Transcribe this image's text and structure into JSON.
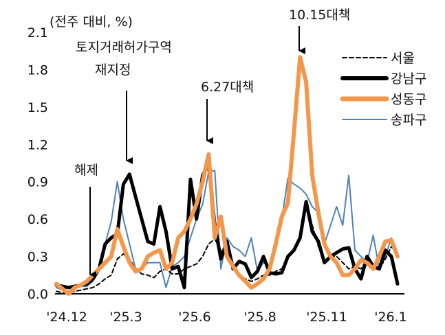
{
  "chart_data": {
    "type": "line",
    "unit_label": "(전주 대비, %)",
    "ylim": [
      0,
      2.1
    ],
    "yticks": [
      "0.0",
      "0.3",
      "0.6",
      "0.9",
      "1.2",
      "1.5",
      "1.8",
      "2.1"
    ],
    "xtick_labels": [
      "'24.12",
      "'25.3",
      "'25.6",
      "'25.8",
      "'25.11",
      "'26.1"
    ],
    "grid": false,
    "legend_position": "top-right",
    "series": [
      {
        "name": "서울",
        "color": "#000000",
        "style": "dashed",
        "values": [
          0.02,
          0.01,
          0.01,
          0.02,
          0.03,
          0.04,
          0.05,
          0.08,
          0.12,
          0.15,
          0.28,
          0.32,
          0.28,
          0.2,
          0.16,
          0.15,
          0.13,
          0.18,
          0.2,
          0.16,
          0.16,
          0.2,
          0.22,
          0.24,
          0.3,
          0.4,
          0.44,
          0.35,
          0.3,
          0.22,
          0.15,
          0.12,
          0.1,
          0.12,
          0.15,
          0.15,
          0.18,
          0.2,
          0.3,
          0.35,
          0.45,
          0.7,
          0.55,
          0.38,
          0.25,
          0.3,
          0.3,
          0.25,
          0.2,
          0.22,
          0.2,
          0.28,
          0.22,
          0.2,
          0.28,
          0.38,
          0.32
        ]
      },
      {
        "name": "강남구",
        "color": "#000000",
        "style": "thick",
        "values": [
          0.07,
          0.06,
          0.05,
          0.06,
          0.07,
          0.08,
          0.12,
          0.2,
          0.4,
          0.45,
          0.48,
          0.88,
          0.96,
          0.78,
          0.6,
          0.42,
          0.4,
          0.7,
          0.5,
          0.2,
          0.22,
          0.05,
          0.92,
          0.6,
          0.95,
          1.04,
          0.55,
          0.28,
          0.42,
          0.2,
          0.26,
          0.24,
          0.13,
          0.18,
          0.3,
          0.17,
          0.16,
          0.17,
          0.3,
          0.35,
          0.45,
          0.74,
          0.5,
          0.42,
          0.25,
          0.3,
          0.33,
          0.36,
          0.37,
          0.2,
          0.12,
          0.3,
          0.22,
          0.2,
          0.35,
          0.3,
          0.08
        ]
      },
      {
        "name": "성동구",
        "color": "#F4974A",
        "style": "thick",
        "values": [
          0.08,
          0.04,
          0.0,
          0.05,
          0.07,
          0.1,
          0.15,
          0.2,
          0.25,
          0.3,
          0.52,
          0.38,
          0.25,
          0.18,
          0.2,
          0.3,
          0.33,
          0.35,
          0.2,
          0.25,
          0.45,
          0.5,
          0.6,
          0.72,
          0.9,
          1.12,
          0.45,
          0.62,
          0.3,
          0.22,
          0.15,
          0.1,
          0.05,
          0.08,
          0.12,
          0.2,
          0.4,
          0.62,
          0.73,
          1.3,
          1.9,
          1.7,
          0.95,
          0.65,
          0.4,
          0.3,
          0.25,
          0.15,
          0.15,
          0.2,
          0.27,
          0.25,
          0.2,
          0.3,
          0.42,
          0.43,
          0.3
        ]
      },
      {
        "name": "송파구",
        "color": "#4F81BD",
        "style": "thin",
        "values": [
          0.05,
          0.03,
          0.02,
          0.05,
          0.06,
          0.06,
          0.1,
          0.2,
          0.4,
          0.58,
          0.9,
          0.6,
          0.4,
          0.2,
          0.2,
          0.25,
          0.25,
          0.25,
          0.05,
          0.22,
          0.25,
          0.3,
          0.45,
          0.6,
          0.72,
          0.98,
          0.99,
          0.2,
          0.45,
          0.38,
          0.35,
          0.3,
          0.45,
          0.18,
          0.25,
          0.22,
          0.35,
          0.6,
          0.93,
          0.88,
          0.85,
          0.8,
          0.7,
          0.65,
          0.4,
          0.55,
          0.7,
          0.55,
          0.95,
          0.35,
          0.3,
          0.25,
          0.47,
          0.2,
          0.3,
          0.45,
          0.32
        ]
      }
    ],
    "annotations": {
      "reinstate_line1": "토지거래허가구역",
      "reinstate_line2": "재지정",
      "lift": "해제",
      "policy_627": "6.27대책",
      "policy_1015": "10.15대책"
    }
  }
}
